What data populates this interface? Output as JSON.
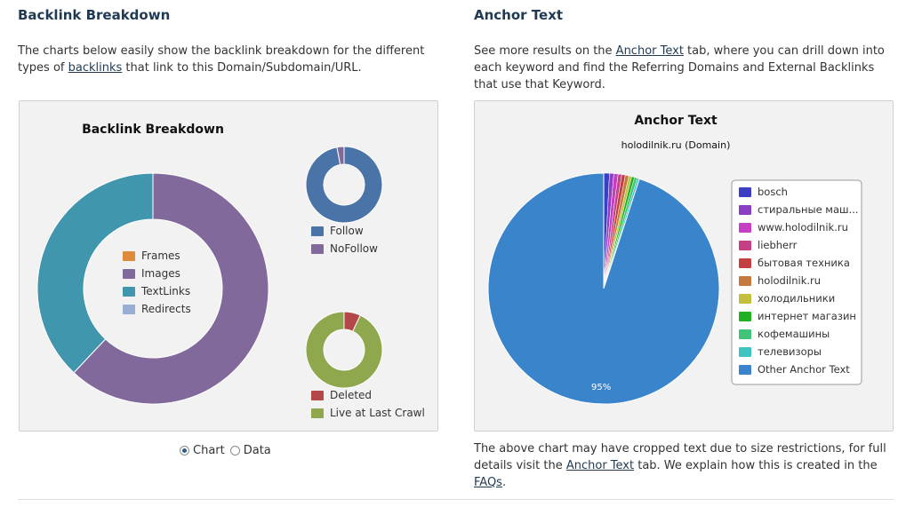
{
  "left": {
    "title": "Backlink Breakdown",
    "intro_before": "The charts below easily show the backlink breakdown for the different types of ",
    "intro_link": "backlinks",
    "intro_after": " that link to this Domain/Subdomain/URL."
  },
  "right": {
    "title": "Anchor Text",
    "intro_before": "See more results on the ",
    "intro_link": "Anchor Text",
    "intro_after": " tab, where you can drill down into each keyword and find the Referring Domains and External Backlinks that use that Keyword.",
    "footer_before": "The above chart may have cropped text due to size restrictions, for full details visit the ",
    "footer_link1": "Anchor Text",
    "footer_mid": " tab. We explain how this is created in the ",
    "footer_link2": "FAQs",
    "footer_after": "."
  },
  "view_toggle": {
    "chart_label": "Chart",
    "data_label": "Data",
    "selected": "Chart"
  },
  "chart_data": [
    {
      "type": "pie",
      "variant": "donut",
      "title": "Backlink Breakdown",
      "categories": [
        "Frames",
        "Images",
        "TextLinks",
        "Redirects"
      ],
      "values": [
        0,
        62,
        38,
        0
      ],
      "colors": [
        "#e08a3c",
        "#82699c",
        "#3f96ad",
        "#98aed4"
      ],
      "legend": "center"
    },
    {
      "type": "pie",
      "variant": "donut",
      "title": "",
      "categories": [
        "Follow",
        "NoFollow"
      ],
      "values": [
        97,
        3
      ],
      "colors": [
        "#4a74a8",
        "#82699c"
      ],
      "legend": "below"
    },
    {
      "type": "pie",
      "variant": "donut",
      "title": "",
      "categories": [
        "Deleted",
        "Live at Last Crawl"
      ],
      "values": [
        7,
        93
      ],
      "colors": [
        "#b44848",
        "#8fa84e"
      ],
      "legend": "below"
    },
    {
      "type": "pie",
      "title": "Anchor Text",
      "subtitle": "holodilnik.ru (Domain)",
      "categories": [
        "bosch",
        "стиральные маш...",
        "www.holodilnik.ru",
        "liebherr",
        "бытовая техника",
        "holodilnik.ru",
        "холодильники",
        "интернет магазин",
        "кофемашины",
        "телевизоры",
        "Other Anchor Text"
      ],
      "values": [
        0.8,
        0.6,
        0.6,
        0.5,
        0.5,
        0.5,
        0.4,
        0.4,
        0.4,
        0.3,
        95
      ],
      "data_labels": [
        "",
        "",
        "",
        "",
        "",
        "",
        "",
        "",
        "",
        "",
        "95%"
      ],
      "colors": [
        "#3a3fc4",
        "#8a3fc4",
        "#c43fc4",
        "#c43f86",
        "#c43f3f",
        "#c47a3f",
        "#c4c03f",
        "#22b022",
        "#3fc47a",
        "#3fc4c0",
        "#3a84cc"
      ],
      "legend": "right"
    }
  ]
}
